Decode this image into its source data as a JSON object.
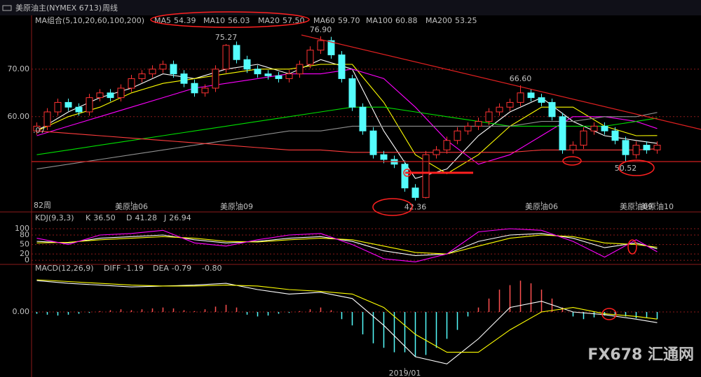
{
  "header": {
    "title": "美原油主(NYMEX 6713)",
    "period": "周线",
    "watermark": "FX678 汇通网"
  },
  "chart_data": [
    {
      "type": "candlestick",
      "legend_title": "MA组合(5,10,20,60,100,200)",
      "period_label": "82周",
      "left_label": ".07",
      "up_color": "#ff3232",
      "down_color": "#54fcfc",
      "xlim": [
        -0.5,
        59.5
      ],
      "ylim": [
        40.4,
        81.6
      ],
      "yticks": [
        {
          "value": 60,
          "label": "60.00"
        },
        {
          "value": 70,
          "label": "70.00"
        }
      ],
      "grid": true,
      "categories": [
        null,
        null,
        null,
        null,
        null,
        null,
        null,
        null,
        null,
        "美原油06",
        null,
        null,
        null,
        null,
        null,
        null,
        null,
        null,
        null,
        "美原油09",
        null,
        null,
        null,
        null,
        null,
        null,
        null,
        null,
        null,
        null,
        null,
        null,
        null,
        null,
        null,
        null,
        null,
        null,
        null,
        null,
        null,
        null,
        null,
        null,
        null,
        null,
        null,
        null,
        "美原油06",
        null,
        null,
        null,
        null,
        null,
        null,
        null,
        null,
        "美原油09",
        null,
        "美原油10"
      ],
      "ohlc": [
        [
          57,
          58.8,
          56.2,
          58
        ],
        [
          58,
          61.8,
          57.2,
          61
        ],
        [
          61,
          63.8,
          60.2,
          63
        ],
        [
          63,
          63.8,
          61.2,
          62
        ],
        [
          62,
          62.8,
          60.2,
          61
        ],
        [
          61,
          64.8,
          60.2,
          64
        ],
        [
          64,
          65.8,
          63.2,
          65
        ],
        [
          65,
          65.8,
          63.2,
          64
        ],
        [
          64,
          66.8,
          63.2,
          66
        ],
        [
          66,
          68.8,
          65.2,
          68
        ],
        [
          68,
          69.8,
          67.2,
          69
        ],
        [
          69,
          70.8,
          68.2,
          70
        ],
        [
          70,
          71.8,
          69.2,
          71
        ],
        [
          71,
          71.8,
          68.2,
          69
        ],
        [
          69,
          69.8,
          66.2,
          67
        ],
        [
          67,
          67.8,
          64.2,
          65
        ],
        [
          65,
          66.8,
          64.2,
          66
        ],
        [
          66,
          70.8,
          65.2,
          70
        ],
        [
          70,
          75.27,
          69.2,
          75
        ],
        [
          75,
          75.8,
          71.2,
          72
        ],
        [
          72,
          72.8,
          69.2,
          70
        ],
        [
          70,
          70.8,
          68.2,
          69
        ],
        [
          69,
          69.8,
          67.8,
          68.6
        ],
        [
          68.6,
          69.4,
          67.2,
          68
        ],
        [
          68,
          69.8,
          67.2,
          69
        ],
        [
          69,
          71.8,
          68.2,
          71
        ],
        [
          71,
          74.8,
          70.2,
          74
        ],
        [
          74,
          76.9,
          73.2,
          76
        ],
        [
          76,
          76.8,
          72.2,
          73
        ],
        [
          73,
          73.8,
          67.2,
          68
        ],
        [
          68,
          68.8,
          61.2,
          62
        ],
        [
          62,
          62.8,
          56.2,
          57
        ],
        [
          57,
          57.8,
          51.2,
          52
        ],
        [
          52,
          52.8,
          50.2,
          51
        ],
        [
          51,
          51.8,
          49.2,
          50
        ],
        [
          50,
          50.8,
          44.2,
          45
        ],
        [
          45,
          45.8,
          42.36,
          43
        ],
        [
          43,
          52.8,
          42.8,
          52
        ],
        [
          52,
          53.8,
          51.2,
          53
        ],
        [
          53,
          55.8,
          52.2,
          55
        ],
        [
          55,
          57.8,
          54.2,
          57
        ],
        [
          57,
          58.8,
          56.2,
          58
        ],
        [
          58,
          59.8,
          57.2,
          59
        ],
        [
          59,
          61.8,
          58.2,
          61
        ],
        [
          61,
          62.8,
          60.2,
          62
        ],
        [
          62,
          63.8,
          61.2,
          63
        ],
        [
          63,
          66.6,
          62.2,
          65
        ],
        [
          65,
          65.8,
          63.2,
          64
        ],
        [
          64,
          64.8,
          62.2,
          63
        ],
        [
          63,
          63.8,
          59.2,
          60
        ],
        [
          60,
          60.8,
          52.2,
          53
        ],
        [
          53,
          54.8,
          52.2,
          54
        ],
        [
          54,
          57.8,
          53.2,
          57
        ],
        [
          57,
          58.8,
          56.2,
          58
        ],
        [
          58,
          58.8,
          56.2,
          57
        ],
        [
          57,
          57.8,
          54.2,
          55
        ],
        [
          55,
          55.8,
          50.52,
          52
        ],
        [
          52,
          54.8,
          51.2,
          54
        ],
        [
          54,
          54.8,
          52.2,
          53
        ],
        [
          53,
          54.8,
          52.2,
          54
        ]
      ],
      "annotations": [
        {
          "x": 18,
          "value": 75.27,
          "label": "75.27"
        },
        {
          "x": 27,
          "value": 76.9,
          "label": "76.90"
        },
        {
          "x": 46,
          "value": 66.6,
          "label": "66.60"
        },
        {
          "x": 36,
          "value": 42.36,
          "label": "42.36"
        },
        {
          "x": 56,
          "value": 50.52,
          "label": "50.52"
        }
      ],
      "series": [
        {
          "name": "MA5",
          "color": "#ffffff",
          "last_label": "54.39",
          "x": [
            0,
            3,
            6,
            9,
            12,
            15,
            18,
            21,
            24,
            27,
            30,
            33,
            36,
            39,
            42,
            45,
            48,
            51,
            54,
            57,
            59
          ],
          "values": [
            57,
            61,
            64,
            66,
            69,
            68,
            70,
            71,
            69,
            72,
            70,
            57,
            47,
            49,
            56,
            61,
            64,
            59,
            56,
            55,
            54.39
          ]
        },
        {
          "name": "MA10",
          "color": "#ffff00",
          "last_label": "56.03",
          "x": [
            0,
            3,
            6,
            9,
            12,
            15,
            18,
            21,
            24,
            27,
            30,
            33,
            36,
            39,
            42,
            45,
            48,
            51,
            54,
            57,
            59
          ],
          "values": [
            57,
            60,
            62,
            65,
            67,
            68,
            69,
            70,
            70,
            71,
            71,
            63,
            52,
            48,
            52,
            58,
            62,
            62,
            58,
            56,
            56.03
          ]
        },
        {
          "name": "MA20",
          "color": "#ff00ff",
          "last_label": "57.50",
          "x": [
            0,
            3,
            6,
            9,
            12,
            15,
            18,
            21,
            24,
            27,
            30,
            33,
            36,
            39,
            42,
            45,
            48,
            51,
            54,
            57,
            59
          ],
          "values": [
            56,
            58,
            60,
            62,
            64,
            66,
            67,
            68,
            69,
            69,
            70,
            68,
            62,
            55,
            50,
            52,
            56,
            60,
            60,
            59,
            57.5
          ]
        },
        {
          "name": "MA60",
          "color": "#00e000",
          "last_label": "59.70",
          "x": [
            0,
            3,
            6,
            9,
            12,
            15,
            18,
            21,
            24,
            27,
            30,
            33,
            36,
            39,
            42,
            45,
            48,
            51,
            54,
            57,
            59
          ],
          "values": [
            52,
            53,
            54,
            55,
            56,
            57,
            58,
            59,
            60,
            61,
            62,
            62,
            61,
            60,
            59,
            58,
            58,
            58,
            58,
            59,
            59.7
          ]
        },
        {
          "name": "MA100",
          "color": "#909090",
          "last_label": "60.88",
          "x": [
            0,
            3,
            6,
            9,
            12,
            15,
            18,
            21,
            24,
            27,
            30,
            33,
            36,
            39,
            42,
            45,
            48,
            51,
            54,
            57,
            59
          ],
          "values": [
            49,
            50,
            51,
            52,
            53,
            54,
            55,
            56,
            57,
            57,
            58,
            58,
            58,
            58,
            58,
            58,
            59,
            59,
            60,
            60,
            60.88
          ]
        },
        {
          "name": "MA200",
          "color": "#ff3c3c",
          "last_label": "53.25",
          "x": [
            0,
            3,
            6,
            9,
            12,
            15,
            18,
            21,
            24,
            27,
            30,
            33,
            36,
            39,
            42,
            45,
            48,
            51,
            54,
            57,
            59
          ],
          "values": [
            57,
            56.5,
            56,
            55.5,
            55,
            54.5,
            54,
            53.5,
            53,
            53,
            52.5,
            52.5,
            52.5,
            52.5,
            52.5,
            52.5,
            53,
            53,
            53,
            53,
            53.25
          ]
        }
      ]
    },
    {
      "type": "line",
      "legend_title": "KDJ(9,3,3)",
      "xlim": [
        -0.5,
        59.5
      ],
      "ylim": [
        -13,
        120
      ],
      "yticks": [
        0,
        20,
        50,
        80,
        100
      ],
      "grid": true,
      "series": [
        {
          "name": "K",
          "color": "#ffffff",
          "last_label": "36.50",
          "x": [
            0,
            3,
            6,
            9,
            12,
            15,
            18,
            21,
            24,
            27,
            30,
            33,
            36,
            39,
            42,
            45,
            48,
            51,
            54,
            57,
            59
          ],
          "values": [
            60,
            55,
            70,
            75,
            80,
            65,
            55,
            60,
            70,
            75,
            60,
            30,
            15,
            20,
            60,
            80,
            85,
            70,
            40,
            55,
            36.5
          ]
        },
        {
          "name": "D",
          "color": "#ffff00",
          "last_label": "41.28",
          "x": [
            0,
            3,
            6,
            9,
            12,
            15,
            18,
            21,
            24,
            27,
            30,
            33,
            36,
            39,
            42,
            45,
            48,
            51,
            54,
            57,
            59
          ],
          "values": [
            55,
            57,
            65,
            70,
            75,
            70,
            60,
            58,
            65,
            70,
            65,
            45,
            25,
            20,
            45,
            70,
            80,
            75,
            55,
            50,
            41.28
          ]
        },
        {
          "name": "J",
          "color": "#ff00ff",
          "last_label": "26.94",
          "x": [
            0,
            3,
            6,
            9,
            12,
            15,
            18,
            21,
            24,
            27,
            30,
            33,
            36,
            39,
            42,
            45,
            48,
            51,
            54,
            57,
            59
          ],
          "values": [
            70,
            50,
            80,
            85,
            95,
            55,
            45,
            65,
            80,
            85,
            50,
            5,
            -5,
            20,
            90,
            100,
            95,
            60,
            10,
            65,
            26.94
          ]
        }
      ]
    },
    {
      "type": "bar",
      "legend_title": "MACD(12,26,9)",
      "last_label": "-0.80",
      "up_color": "#ff5050",
      "down_color": "#54fcfc",
      "xlim": [
        -0.5,
        59.5
      ],
      "ylim": [
        -6.56,
        5.16
      ],
      "yticks": [
        {
          "value": 0,
          "label": "0.00"
        }
      ],
      "grid": true,
      "categories": [
        null,
        null,
        null,
        null,
        null,
        null,
        null,
        null,
        null,
        null,
        null,
        null,
        null,
        null,
        null,
        null,
        null,
        null,
        null,
        null,
        null,
        null,
        null,
        null,
        null,
        null,
        null,
        null,
        null,
        null,
        null,
        null,
        null,
        null,
        null,
        "2019/01",
        null,
        null,
        null,
        null,
        null,
        null,
        null,
        null,
        null,
        null,
        null,
        null,
        null,
        null,
        null,
        null,
        null,
        null,
        null,
        null,
        null,
        null,
        null,
        null
      ],
      "values": [
        -0.2,
        -0.3,
        -0.4,
        -0.3,
        -0.2,
        -0.1,
        0.1,
        0.2,
        0.3,
        0.2,
        0.3,
        0.4,
        0.5,
        0.4,
        0.2,
        0.1,
        0.3,
        0.6,
        0.8,
        0.5,
        -0.3,
        -0.5,
        -0.4,
        -0.2,
        -0.1,
        0.1,
        0.3,
        0.5,
        0.2,
        -0.8,
        -1.5,
        -2.5,
        -3.5,
        -4,
        -4.5,
        -4.5,
        -5,
        -4.8,
        -4,
        -3,
        -2,
        -0.5,
        0.5,
        1.5,
        2.5,
        3,
        3.5,
        3.2,
        2.5,
        1.5,
        0.5,
        -0.5,
        -0.8,
        -0.6,
        -0.4,
        -0.3,
        -0.5,
        -0.7,
        -0.6,
        -0.8
      ],
      "series": [
        {
          "name": "DIFF",
          "color": "#ffffff",
          "last_label": "-1.19",
          "x": [
            0,
            3,
            6,
            9,
            12,
            15,
            18,
            21,
            24,
            27,
            30,
            33,
            36,
            39,
            42,
            45,
            48,
            51,
            54,
            57,
            59
          ],
          "values": [
            3.5,
            3.2,
            3,
            2.8,
            2.9,
            3,
            3.2,
            2.5,
            2,
            2.2,
            1.5,
            -1.5,
            -5,
            -5.8,
            -3,
            0.5,
            1.2,
            0,
            -0.3,
            -0.8,
            -1.19
          ]
        },
        {
          "name": "DEA",
          "color": "#ffff00",
          "last_label": "-0.79",
          "x": [
            0,
            3,
            6,
            9,
            12,
            15,
            18,
            21,
            24,
            27,
            30,
            33,
            36,
            39,
            42,
            45,
            48,
            51,
            54,
            57,
            59
          ],
          "values": [
            3.6,
            3.4,
            3.2,
            3,
            2.9,
            2.9,
            3,
            2.9,
            2.5,
            2.3,
            2,
            0.5,
            -2.5,
            -4.5,
            -4.5,
            -2,
            0,
            0.5,
            -0.2,
            -0.5,
            -0.79
          ]
        }
      ]
    }
  ]
}
